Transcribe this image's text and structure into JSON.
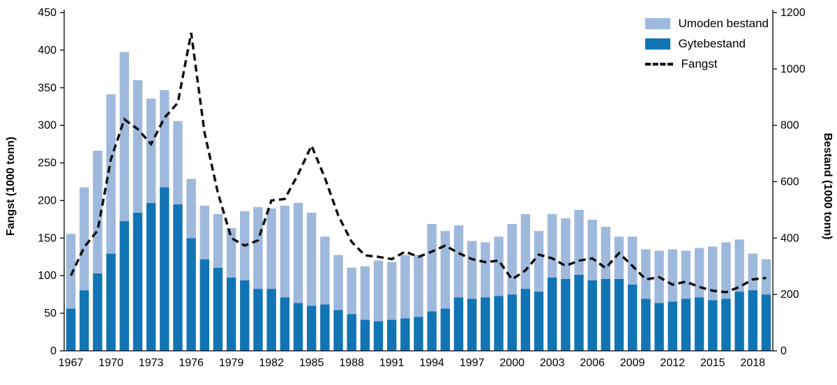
{
  "chart_data": {
    "type": "bar",
    "subtype": "stacked-bars-with-dashed-line",
    "title": "",
    "years": [
      1967,
      1968,
      1969,
      1970,
      1971,
      1972,
      1973,
      1974,
      1975,
      1976,
      1977,
      1978,
      1979,
      1980,
      1981,
      1982,
      1983,
      1984,
      1985,
      1986,
      1987,
      1988,
      1989,
      1990,
      1991,
      1992,
      1993,
      1994,
      1995,
      1996,
      1997,
      1998,
      1999,
      2000,
      2001,
      2002,
      2003,
      2004,
      2005,
      2006,
      2007,
      2008,
      2009,
      2010,
      2011,
      2012,
      2013,
      2014,
      2015,
      2016,
      2017,
      2018,
      2019
    ],
    "series": [
      {
        "name": "Gytebestand",
        "axis": "right",
        "render": "bar-bottom",
        "color": "#1175b5",
        "values": [
          150,
          215,
          275,
          345,
          460,
          490,
          525,
          580,
          520,
          400,
          325,
          295,
          260,
          250,
          220,
          220,
          190,
          170,
          160,
          165,
          145,
          130,
          110,
          105,
          110,
          115,
          120,
          140,
          150,
          190,
          185,
          190,
          195,
          200,
          220,
          210,
          260,
          255,
          270,
          250,
          255,
          255,
          235,
          185,
          170,
          175,
          185,
          190,
          180,
          185,
          210,
          215,
          200
        ]
      },
      {
        "name": "Umoden bestand",
        "axis": "right",
        "render": "bar-top",
        "color": "#9fb9dd",
        "values": [
          265,
          365,
          435,
          565,
          600,
          470,
          370,
          345,
          295,
          210,
          190,
          190,
          175,
          245,
          290,
          285,
          325,
          355,
          330,
          240,
          195,
          165,
          190,
          215,
          205,
          225,
          220,
          310,
          275,
          255,
          205,
          195,
          210,
          250,
          265,
          215,
          225,
          215,
          230,
          215,
          185,
          150,
          170,
          175,
          185,
          185,
          170,
          175,
          190,
          200,
          185,
          130,
          125
        ]
      },
      {
        "name": "Fangst",
        "axis": "left",
        "render": "dashed-line",
        "color": "#111111",
        "values": [
          100,
          138,
          160,
          255,
          308,
          295,
          275,
          310,
          330,
          423,
          290,
          210,
          150,
          140,
          147,
          200,
          202,
          235,
          273,
          230,
          180,
          145,
          127,
          125,
          122,
          132,
          125,
          132,
          140,
          130,
          122,
          118,
          120,
          95,
          107,
          128,
          123,
          113,
          120,
          123,
          110,
          130,
          113,
          95,
          98,
          88,
          92,
          85,
          80,
          78,
          85,
          95,
          97
        ]
      }
    ],
    "left_axis": {
      "label": "Fangst (1000 tonn)",
      "min": 0,
      "max": 450,
      "ticks": [
        0,
        50,
        100,
        150,
        200,
        250,
        300,
        350,
        400,
        450
      ]
    },
    "right_axis": {
      "label": "Bestand (1000 tonn)",
      "min": 0,
      "max": 1200,
      "ticks": [
        0,
        200,
        400,
        600,
        800,
        1000,
        1200
      ]
    },
    "x_tick_labels": [
      "1967",
      "1970",
      "1973",
      "1976",
      "1979",
      "1982",
      "1985",
      "1988",
      "1991",
      "1994",
      "1997",
      "2000",
      "2003",
      "2006",
      "2009",
      "2012",
      "2015",
      "2018"
    ],
    "grid": false,
    "legend_position": "top-right-inside",
    "legend": {
      "umoden_label": "Umoden bestand",
      "gyte_label": "Gytebestand",
      "fangst_label": "Fangst"
    },
    "colors": {
      "umoden": "#9fb9dd",
      "gyte": "#1175b5",
      "line": "#111111",
      "axis": "#000000"
    }
  }
}
